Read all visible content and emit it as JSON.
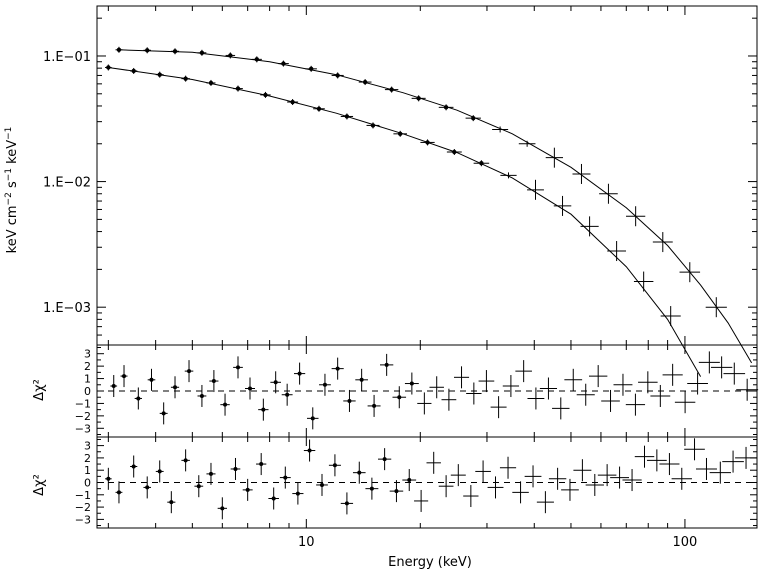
{
  "chart_data": [
    {
      "type": "scatter",
      "panel": "spectrum",
      "xlabel": "Energy (keV)",
      "ylabel": "keV cm^-2 s^-1 keV^-1",
      "ylabel_parts": [
        "keV cm",
        "−2",
        "s",
        "−1",
        "keV",
        "−1"
      ],
      "xlim": [
        2.8,
        155
      ],
      "ylim": [
        0.0005,
        0.25
      ],
      "xscale": "log",
      "yscale": "log",
      "x_ticks": [
        10,
        100
      ],
      "x_tick_labels": [
        "10",
        "100"
      ],
      "y_ticks": [
        0.1,
        0.01,
        0.001
      ],
      "y_tick_labels": [
        "1.E−01",
        "1.E−02",
        "1.E−03"
      ],
      "grid": false,
      "series": [
        {
          "points": [
            [
              3.2,
              0.112
            ],
            [
              3.8,
              0.111
            ],
            [
              4.5,
              0.109
            ],
            [
              5.3,
              0.106
            ],
            [
              6.3,
              0.101
            ],
            [
              7.4,
              0.094
            ],
            [
              8.7,
              0.087
            ],
            [
              10.3,
              0.079
            ],
            [
              12.1,
              0.07
            ],
            [
              14.3,
              0.062
            ],
            [
              16.8,
              0.054
            ],
            [
              19.8,
              0.046
            ],
            [
              23.4,
              0.039
            ],
            [
              27.6,
              0.032
            ],
            [
              32.5,
              0.026
            ],
            [
              38.3,
              0.02
            ],
            [
              45.2,
              0.0155
            ],
            [
              53.3,
              0.0115
            ],
            [
              62.8,
              0.008
            ],
            [
              74.1,
              0.0053
            ],
            [
              87.4,
              0.0033
            ],
            [
              103,
              0.0019
            ],
            [
              121,
              0.001
            ],
            [
              143,
              0.00048
            ]
          ],
          "model": [
            [
              3.2,
              0.112
            ],
            [
              5,
              0.107
            ],
            [
              8,
              0.09
            ],
            [
              12,
              0.071
            ],
            [
              18,
              0.051
            ],
            [
              25,
              0.037
            ],
            [
              35,
              0.024
            ],
            [
              50,
              0.013
            ],
            [
              70,
              0.0062
            ],
            [
              90,
              0.0031
            ],
            [
              110,
              0.0015
            ],
            [
              130,
              0.00075
            ],
            [
              150,
              0.00036
            ]
          ]
        },
        {
          "points": [
            [
              3.0,
              0.081
            ],
            [
              3.5,
              0.076
            ],
            [
              4.1,
              0.071
            ],
            [
              4.8,
              0.066
            ],
            [
              5.6,
              0.061
            ],
            [
              6.6,
              0.055
            ],
            [
              7.8,
              0.049
            ],
            [
              9.2,
              0.043
            ],
            [
              10.8,
              0.038
            ],
            [
              12.8,
              0.033
            ],
            [
              15.0,
              0.028
            ],
            [
              17.7,
              0.024
            ],
            [
              20.9,
              0.0205
            ],
            [
              24.6,
              0.0172
            ],
            [
              29.0,
              0.014
            ],
            [
              34.2,
              0.0112
            ],
            [
              40.3,
              0.0086
            ],
            [
              47.5,
              0.0064
            ],
            [
              56.0,
              0.0044
            ],
            [
              66.0,
              0.0028
            ],
            [
              77.8,
              0.0016
            ],
            [
              91.7,
              0.00085
            ],
            [
              108,
              0.0004
            ]
          ],
          "model": [
            [
              3.0,
              0.081
            ],
            [
              5,
              0.065
            ],
            [
              8,
              0.048
            ],
            [
              12,
              0.035
            ],
            [
              18,
              0.024
            ],
            [
              25,
              0.017
            ],
            [
              35,
              0.0107
            ],
            [
              50,
              0.0055
            ],
            [
              70,
              0.0021
            ],
            [
              90,
              0.0008
            ],
            [
              110,
              0.00028
            ]
          ]
        }
      ]
    },
    {
      "type": "scatter",
      "panel": "residuals-1",
      "ylabel": "Δχ²",
      "ylim": [
        -3.7,
        3.7
      ],
      "xscale": "log",
      "y_ticks": [
        3,
        2,
        1,
        0,
        -1,
        -2,
        -3
      ],
      "y_tick_labels": [
        "3",
        "2",
        "1",
        "0",
        "−1",
        "−2",
        "−3"
      ],
      "zero_line": "dashed",
      "points": [
        [
          3.1,
          0.4
        ],
        [
          3.3,
          1.2
        ],
        [
          3.6,
          -0.6
        ],
        [
          3.9,
          0.9
        ],
        [
          4.2,
          -1.8
        ],
        [
          4.5,
          0.3
        ],
        [
          4.9,
          1.6
        ],
        [
          5.3,
          -0.4
        ],
        [
          5.7,
          0.8
        ],
        [
          6.1,
          -1.1
        ],
        [
          6.6,
          1.9
        ],
        [
          7.1,
          0.2
        ],
        [
          7.7,
          -1.5
        ],
        [
          8.3,
          0.7
        ],
        [
          8.9,
          -0.3
        ],
        [
          9.6,
          1.4
        ],
        [
          10.4,
          -2.2
        ],
        [
          11.2,
          0.5
        ],
        [
          12.1,
          1.8
        ],
        [
          13.0,
          -0.8
        ],
        [
          14.0,
          0.9
        ],
        [
          15.1,
          -1.2
        ],
        [
          16.3,
          2.1
        ],
        [
          17.6,
          -0.5
        ],
        [
          19.0,
          0.6
        ],
        [
          20.5,
          -1.0
        ],
        [
          22.1,
          0.3
        ],
        [
          23.8,
          -0.7
        ],
        [
          25.7,
          1.1
        ],
        [
          27.7,
          -0.2
        ],
        [
          29.9,
          0.8
        ],
        [
          32.2,
          -1.3
        ],
        [
          34.7,
          0.4
        ],
        [
          37.5,
          1.6
        ],
        [
          40.4,
          -0.6
        ],
        [
          43.6,
          0.2
        ],
        [
          47.0,
          -1.4
        ],
        [
          50.7,
          0.9
        ],
        [
          54.7,
          -0.3
        ],
        [
          59.0,
          1.2
        ],
        [
          63.6,
          -0.8
        ],
        [
          68.6,
          0.5
        ],
        [
          74.0,
          -1.1
        ],
        [
          79.8,
          0.7
        ],
        [
          86.1,
          -0.4
        ],
        [
          92.8,
          1.3
        ],
        [
          100.1,
          -0.9
        ],
        [
          108,
          0.6
        ],
        [
          116,
          2.3
        ],
        [
          125,
          1.9
        ],
        [
          135,
          1.4
        ],
        [
          146,
          0.1
        ]
      ]
    },
    {
      "type": "scatter",
      "panel": "residuals-2",
      "ylabel": "Δχ²",
      "ylim": [
        -3.7,
        3.7
      ],
      "xscale": "log",
      "y_ticks": [
        3,
        2,
        1,
        0,
        -1,
        -2,
        -3
      ],
      "y_tick_labels": [
        "3",
        "2",
        "1",
        "0",
        "−1",
        "−2",
        "−3"
      ],
      "zero_line": "dashed",
      "points": [
        [
          3.0,
          0.3
        ],
        [
          3.2,
          -0.8
        ],
        [
          3.5,
          1.3
        ],
        [
          3.8,
          -0.4
        ],
        [
          4.1,
          0.9
        ],
        [
          4.4,
          -1.6
        ],
        [
          4.8,
          1.8
        ],
        [
          5.2,
          -0.3
        ],
        [
          5.6,
          0.7
        ],
        [
          6.0,
          -2.1
        ],
        [
          6.5,
          1.1
        ],
        [
          7.0,
          -0.6
        ],
        [
          7.6,
          1.5
        ],
        [
          8.2,
          -1.3
        ],
        [
          8.8,
          0.4
        ],
        [
          9.5,
          -0.9
        ],
        [
          10.2,
          2.6
        ],
        [
          11.0,
          -0.2
        ],
        [
          11.9,
          1.4
        ],
        [
          12.8,
          -1.7
        ],
        [
          13.8,
          0.8
        ],
        [
          14.9,
          -0.5
        ],
        [
          16.1,
          1.9
        ],
        [
          17.3,
          -0.7
        ],
        [
          18.7,
          0.2
        ],
        [
          20.1,
          -1.5
        ],
        [
          21.7,
          1.6
        ],
        [
          23.4,
          -0.3
        ],
        [
          25.2,
          0.6
        ],
        [
          27.2,
          -1.1
        ],
        [
          29.3,
          0.9
        ],
        [
          31.6,
          -0.4
        ],
        [
          34.1,
          1.2
        ],
        [
          36.8,
          -0.8
        ],
        [
          39.7,
          0.5
        ],
        [
          42.8,
          -1.6
        ],
        [
          46.1,
          0.3
        ],
        [
          49.7,
          -0.6
        ],
        [
          53.6,
          1.0
        ],
        [
          57.8,
          -0.2
        ],
        [
          62.3,
          0.6
        ],
        [
          67.2,
          0.4
        ],
        [
          72.5,
          0.2
        ],
        [
          78.2,
          2.1
        ],
        [
          84.3,
          1.8
        ],
        [
          91.0,
          1.5
        ],
        [
          98.1,
          0.3
        ],
        [
          106,
          2.7
        ],
        [
          114,
          1.1
        ],
        [
          124,
          0.8
        ],
        [
          134,
          1.7
        ],
        [
          145,
          2.0
        ]
      ]
    }
  ]
}
